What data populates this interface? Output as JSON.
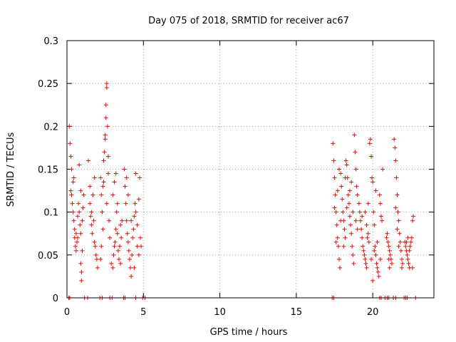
{
  "chart_data": {
    "type": "scatter",
    "title": "Day 075 of 2018, SRMTID for receiver ac67",
    "xlabel": "GPS time / hours",
    "ylabel": "SRMTID / TECUs",
    "xlim": [
      0,
      24
    ],
    "ylim": [
      0,
      0.3
    ],
    "xticks": [
      0,
      5,
      10,
      15,
      20
    ],
    "xtick_labels": [
      "0",
      "5",
      "10",
      "15",
      "20"
    ],
    "yticks": [
      0,
      0.05,
      0.1,
      0.15,
      0.2,
      0.25,
      0.3
    ],
    "ytick_labels": [
      "0",
      "0.05",
      "0.1",
      "0.15",
      "0.2",
      "0.25",
      "0.3"
    ],
    "grid": true,
    "legend": "none",
    "series": [
      {
        "name": "SRMTID",
        "color": "#ff0000",
        "marker": "plus",
        "points": [
          [
            0.15,
            0.2
          ],
          [
            0.2,
            0.18
          ],
          [
            0.25,
            0.165
          ],
          [
            0.25,
            0.125
          ],
          [
            0.3,
            0.12
          ],
          [
            0.35,
            0.11
          ],
          [
            0.4,
            0.135
          ],
          [
            0.4,
            0.1
          ],
          [
            0.45,
            0.09
          ],
          [
            0.5,
            0.08
          ],
          [
            0.5,
            0.07
          ],
          [
            0.55,
            0.06
          ],
          [
            0.6,
            0.055
          ],
          [
            0.6,
            0.075
          ],
          [
            0.65,
            0.065
          ],
          [
            0.7,
            0.095
          ],
          [
            0.75,
            0.11
          ],
          [
            0.8,
            0.1
          ],
          [
            0.85,
            0.085
          ],
          [
            0.9,
            0.075
          ],
          [
            0.9,
            0.04
          ],
          [
            0.95,
            0.03
          ],
          [
            0.95,
            0.02
          ],
          [
            1.0,
            0.055
          ],
          [
            1.0,
            0.09
          ],
          [
            1.05,
            0.105
          ],
          [
            1.1,
            0.12
          ],
          [
            0.3,
            0.15
          ],
          [
            0.45,
            0.14
          ],
          [
            0.8,
            0.155
          ],
          [
            0.9,
            0.125
          ],
          [
            0.7,
            0.07
          ],
          [
            1.4,
            0.16
          ],
          [
            1.5,
            0.11
          ],
          [
            1.55,
            0.095
          ],
          [
            1.6,
            0.1
          ],
          [
            1.6,
            0.085
          ],
          [
            1.7,
            0.12
          ],
          [
            1.75,
            0.09
          ],
          [
            1.8,
            0.065
          ],
          [
            1.85,
            0.06
          ],
          [
            1.9,
            0.05
          ],
          [
            1.95,
            0.045
          ],
          [
            2.0,
            0.035
          ],
          [
            1.5,
            0.13
          ],
          [
            1.65,
            0.075
          ],
          [
            1.8,
            0.14
          ],
          [
            2.2,
            0.14
          ],
          [
            2.25,
            0.12
          ],
          [
            2.3,
            0.1
          ],
          [
            2.35,
            0.08
          ],
          [
            2.4,
            0.16
          ],
          [
            2.45,
            0.17
          ],
          [
            2.5,
            0.19
          ],
          [
            2.5,
            0.185
          ],
          [
            2.55,
            0.21
          ],
          [
            2.55,
            0.225
          ],
          [
            2.6,
            0.25
          ],
          [
            2.6,
            0.245
          ],
          [
            2.65,
            0.2
          ],
          [
            2.7,
            0.165
          ],
          [
            2.7,
            0.145
          ],
          [
            2.2,
            0.045
          ],
          [
            2.25,
            0.06
          ],
          [
            2.35,
            0.13
          ],
          [
            2.6,
            0.11
          ],
          [
            2.75,
            0.09
          ],
          [
            2.8,
            0.07
          ],
          [
            2.4,
            0.135
          ],
          [
            2.9,
            0.04
          ],
          [
            3.0,
            0.035
          ],
          [
            3.05,
            0.05
          ],
          [
            3.1,
            0.06
          ],
          [
            3.15,
            0.065
          ],
          [
            3.2,
            0.08
          ],
          [
            3.25,
            0.1
          ],
          [
            3.3,
            0.075
          ],
          [
            3.35,
            0.055
          ],
          [
            3.4,
            0.045
          ],
          [
            3.45,
            0.06
          ],
          [
            3.5,
            0.085
          ],
          [
            3.55,
            0.07
          ],
          [
            3.6,
            0.09
          ],
          [
            3.0,
            0.12
          ],
          [
            3.1,
            0.135
          ],
          [
            3.3,
            0.11
          ],
          [
            3.5,
            0.04
          ],
          [
            3.2,
            0.145
          ],
          [
            3.75,
            0.15
          ],
          [
            3.8,
            0.13
          ],
          [
            3.85,
            0.11
          ],
          [
            3.9,
            0.09
          ],
          [
            3.95,
            0.075
          ],
          [
            4.0,
            0.065
          ],
          [
            4.05,
            0.055
          ],
          [
            4.1,
            0.045
          ],
          [
            4.15,
            0.035
          ],
          [
            4.2,
            0.025
          ],
          [
            4.25,
            0.05
          ],
          [
            4.3,
            0.07
          ],
          [
            4.35,
            0.08
          ],
          [
            4.4,
            0.095
          ],
          [
            4.45,
            0.11
          ],
          [
            4.5,
            0.1
          ],
          [
            4.5,
            0.145
          ],
          [
            4.6,
            0.085
          ],
          [
            4.7,
            0.115
          ],
          [
            4.75,
            0.14
          ],
          [
            4.8,
            0.07
          ],
          [
            4.85,
            0.06
          ],
          [
            4.0,
            0.12
          ],
          [
            4.2,
            0.09
          ],
          [
            4.6,
            0.06
          ],
          [
            4.7,
            0.05
          ],
          [
            3.9,
            0.14
          ],
          [
            4.4,
            0.035
          ],
          [
            17.4,
            0.18
          ],
          [
            17.45,
            0.16
          ],
          [
            17.5,
            0.14
          ],
          [
            17.55,
            0.12
          ],
          [
            17.6,
            0.1
          ],
          [
            17.65,
            0.085
          ],
          [
            17.7,
            0.07
          ],
          [
            17.75,
            0.06
          ],
          [
            17.8,
            0.045
          ],
          [
            17.85,
            0.035
          ],
          [
            17.5,
            0.105
          ],
          [
            17.7,
            0.125
          ],
          [
            17.9,
            0.09
          ],
          [
            17.6,
            0.065
          ],
          [
            17.8,
            0.15
          ],
          [
            17.9,
            0.145
          ],
          [
            17.95,
            0.13
          ],
          [
            18.0,
            0.115
          ],
          [
            18.05,
            0.1
          ],
          [
            18.1,
            0.09
          ],
          [
            18.15,
            0.08
          ],
          [
            18.2,
            0.07
          ],
          [
            18.25,
            0.16
          ],
          [
            18.3,
            0.155
          ],
          [
            18.35,
            0.14
          ],
          [
            18.4,
            0.12
          ],
          [
            18.45,
            0.11
          ],
          [
            18.5,
            0.095
          ],
          [
            18.55,
            0.085
          ],
          [
            18.6,
            0.075
          ],
          [
            18.65,
            0.06
          ],
          [
            18.7,
            0.05
          ],
          [
            18.75,
            0.04
          ],
          [
            18.8,
            0.19
          ],
          [
            18.85,
            0.17
          ],
          [
            18.9,
            0.15
          ],
          [
            18.95,
            0.13
          ],
          [
            19.0,
            0.12
          ],
          [
            18.1,
            0.06
          ],
          [
            18.3,
            0.105
          ],
          [
            18.5,
            0.125
          ],
          [
            18.7,
            0.1
          ],
          [
            18.9,
            0.09
          ],
          [
            18.6,
            0.135
          ],
          [
            19.0,
            0.08
          ],
          [
            18.2,
            0.14
          ],
          [
            19.1,
            0.11
          ],
          [
            19.15,
            0.1
          ],
          [
            19.2,
            0.09
          ],
          [
            19.25,
            0.08
          ],
          [
            19.3,
            0.07
          ],
          [
            19.35,
            0.06
          ],
          [
            19.4,
            0.055
          ],
          [
            19.45,
            0.05
          ],
          [
            19.5,
            0.045
          ],
          [
            19.55,
            0.04
          ],
          [
            19.6,
            0.035
          ],
          [
            19.65,
            0.07
          ],
          [
            19.7,
            0.075
          ],
          [
            19.75,
            0.065
          ],
          [
            19.8,
            0.18
          ],
          [
            19.85,
            0.185
          ],
          [
            19.9,
            0.165
          ],
          [
            19.95,
            0.14
          ],
          [
            20.0,
            0.135
          ],
          [
            20.05,
            0.1
          ],
          [
            20.1,
            0.085
          ],
          [
            20.15,
            0.06
          ],
          [
            20.2,
            0.05
          ],
          [
            20.25,
            0.04
          ],
          [
            20.3,
            0.035
          ],
          [
            20.35,
            0.03
          ],
          [
            20.4,
            0.025
          ],
          [
            20.45,
            0.12
          ],
          [
            20.5,
            0.11
          ],
          [
            20.55,
            0.095
          ],
          [
            20.6,
            0.09
          ],
          [
            20.65,
            0.15
          ],
          [
            19.3,
            0.095
          ],
          [
            19.5,
            0.1
          ],
          [
            19.7,
            0.11
          ],
          [
            19.9,
            0.045
          ],
          [
            20.1,
            0.055
          ],
          [
            20.3,
            0.065
          ],
          [
            20.5,
            0.045
          ],
          [
            20.0,
            0.02
          ],
          [
            20.2,
            0.125
          ],
          [
            19.6,
            0.085
          ],
          [
            20.9,
            0.07
          ],
          [
            21.0,
            0.065
          ],
          [
            21.05,
            0.06
          ],
          [
            21.1,
            0.055
          ],
          [
            21.15,
            0.05
          ],
          [
            21.2,
            0.045
          ],
          [
            21.25,
            0.04
          ],
          [
            21.1,
            0.035
          ],
          [
            20.95,
            0.075
          ],
          [
            21.05,
            0.045
          ],
          [
            21.4,
            0.185
          ],
          [
            21.45,
            0.175
          ],
          [
            21.5,
            0.16
          ],
          [
            21.55,
            0.14
          ],
          [
            21.6,
            0.12
          ],
          [
            21.65,
            0.1
          ],
          [
            21.7,
            0.09
          ],
          [
            21.75,
            0.075
          ],
          [
            21.8,
            0.065
          ],
          [
            21.85,
            0.055
          ],
          [
            21.9,
            0.045
          ],
          [
            21.95,
            0.04
          ],
          [
            21.5,
            0.105
          ],
          [
            21.7,
            0.06
          ],
          [
            21.9,
            0.035
          ],
          [
            21.6,
            0.08
          ],
          [
            22.1,
            0.065
          ],
          [
            22.15,
            0.06
          ],
          [
            22.2,
            0.055
          ],
          [
            22.25,
            0.05
          ],
          [
            22.3,
            0.045
          ],
          [
            22.35,
            0.04
          ],
          [
            22.4,
            0.035
          ],
          [
            22.45,
            0.06
          ],
          [
            22.5,
            0.065
          ],
          [
            22.55,
            0.07
          ],
          [
            22.6,
            0.09
          ],
          [
            22.65,
            0.095
          ],
          [
            22.2,
            0.065
          ],
          [
            22.4,
            0.055
          ],
          [
            22.6,
            0.035
          ],
          [
            22.3,
            0.07
          ],
          [
            0.12,
            0
          ],
          [
            0.18,
            0
          ],
          [
            1.15,
            0
          ],
          [
            1.35,
            0
          ],
          [
            2.15,
            0
          ],
          [
            2.3,
            0
          ],
          [
            2.8,
            0
          ],
          [
            2.95,
            0
          ],
          [
            3.7,
            0
          ],
          [
            3.8,
            0
          ],
          [
            4.5,
            0
          ],
          [
            4.95,
            0
          ],
          [
            5.1,
            0
          ],
          [
            17.35,
            0
          ],
          [
            17.45,
            0
          ],
          [
            20.45,
            0
          ],
          [
            20.55,
            0
          ],
          [
            20.8,
            0
          ],
          [
            20.95,
            0
          ],
          [
            21.05,
            0
          ],
          [
            21.35,
            0
          ],
          [
            21.5,
            0
          ],
          [
            22.05,
            0
          ],
          [
            22.15,
            0
          ],
          [
            22.25,
            0
          ],
          [
            22.8,
            0
          ]
        ]
      }
    ]
  }
}
